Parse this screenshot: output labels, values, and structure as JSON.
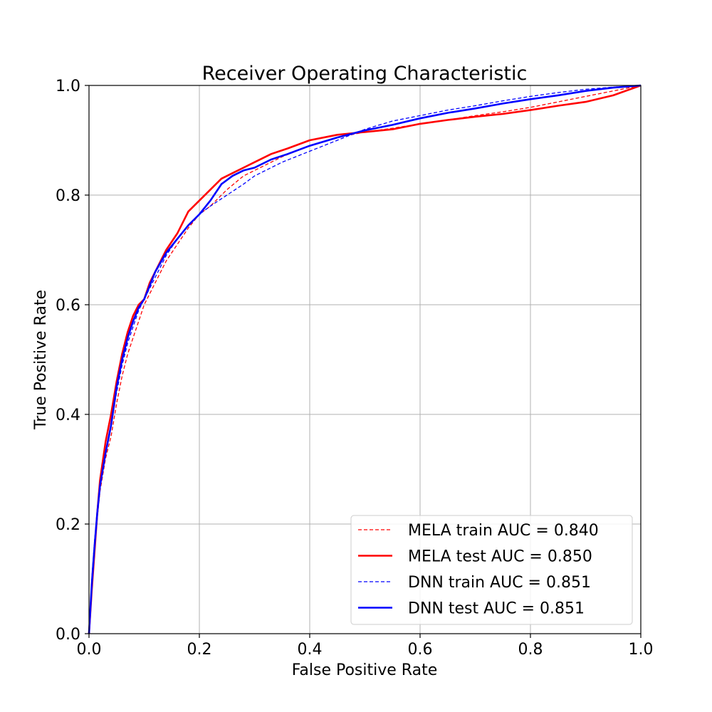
{
  "chart_data": {
    "type": "line",
    "title": "Receiver Operating Characteristic",
    "xlabel": "False Positive Rate",
    "ylabel": "True Positive Rate",
    "xlim": [
      0.0,
      1.0
    ],
    "ylim": [
      0.0,
      1.0
    ],
    "xticks": [
      "0.0",
      "0.2",
      "0.4",
      "0.6",
      "0.8",
      "1.0"
    ],
    "yticks": [
      "0.0",
      "0.2",
      "0.4",
      "0.6",
      "0.8",
      "1.0"
    ],
    "grid": true,
    "legend_position": "lower-right",
    "series": [
      {
        "name": "MELA train AUC = 0.840",
        "color": "#ff0000",
        "style": "dashed",
        "points": [
          [
            0,
            0
          ],
          [
            0.005,
            0.09
          ],
          [
            0.01,
            0.15
          ],
          [
            0.015,
            0.21
          ],
          [
            0.02,
            0.26
          ],
          [
            0.03,
            0.32
          ],
          [
            0.04,
            0.36
          ],
          [
            0.05,
            0.42
          ],
          [
            0.06,
            0.47
          ],
          [
            0.07,
            0.51
          ],
          [
            0.08,
            0.54
          ],
          [
            0.09,
            0.57
          ],
          [
            0.1,
            0.6
          ],
          [
            0.12,
            0.64
          ],
          [
            0.14,
            0.68
          ],
          [
            0.16,
            0.71
          ],
          [
            0.18,
            0.74
          ],
          [
            0.2,
            0.765
          ],
          [
            0.22,
            0.78
          ],
          [
            0.25,
            0.81
          ],
          [
            0.28,
            0.835
          ],
          [
            0.3,
            0.845
          ],
          [
            0.35,
            0.87
          ],
          [
            0.4,
            0.89
          ],
          [
            0.45,
            0.905
          ],
          [
            0.5,
            0.915
          ],
          [
            0.55,
            0.922
          ],
          [
            0.6,
            0.93
          ],
          [
            0.65,
            0.937
          ],
          [
            0.7,
            0.945
          ],
          [
            0.75,
            0.952
          ],
          [
            0.8,
            0.96
          ],
          [
            0.85,
            0.97
          ],
          [
            0.9,
            0.98
          ],
          [
            0.95,
            0.99
          ],
          [
            1.0,
            1.0
          ]
        ]
      },
      {
        "name": "MELA test AUC = 0.850",
        "color": "#ff0000",
        "style": "solid",
        "points": [
          [
            0,
            0
          ],
          [
            0.005,
            0.08
          ],
          [
            0.01,
            0.15
          ],
          [
            0.015,
            0.22
          ],
          [
            0.02,
            0.28
          ],
          [
            0.03,
            0.35
          ],
          [
            0.04,
            0.4
          ],
          [
            0.05,
            0.46
          ],
          [
            0.06,
            0.51
          ],
          [
            0.07,
            0.55
          ],
          [
            0.08,
            0.58
          ],
          [
            0.09,
            0.6
          ],
          [
            0.1,
            0.61
          ],
          [
            0.11,
            0.64
          ],
          [
            0.12,
            0.66
          ],
          [
            0.14,
            0.7
          ],
          [
            0.16,
            0.73
          ],
          [
            0.18,
            0.77
          ],
          [
            0.2,
            0.79
          ],
          [
            0.22,
            0.81
          ],
          [
            0.24,
            0.83
          ],
          [
            0.26,
            0.84
          ],
          [
            0.28,
            0.85
          ],
          [
            0.3,
            0.86
          ],
          [
            0.33,
            0.875
          ],
          [
            0.36,
            0.885
          ],
          [
            0.4,
            0.9
          ],
          [
            0.45,
            0.91
          ],
          [
            0.5,
            0.915
          ],
          [
            0.55,
            0.92
          ],
          [
            0.6,
            0.93
          ],
          [
            0.65,
            0.937
          ],
          [
            0.7,
            0.943
          ],
          [
            0.75,
            0.948
          ],
          [
            0.8,
            0.955
          ],
          [
            0.85,
            0.963
          ],
          [
            0.9,
            0.97
          ],
          [
            0.95,
            0.982
          ],
          [
            1.0,
            1.0
          ]
        ]
      },
      {
        "name": "DNN train AUC = 0.851",
        "color": "#0000ff",
        "style": "dashed",
        "points": [
          [
            0,
            0
          ],
          [
            0.005,
            0.1
          ],
          [
            0.01,
            0.17
          ],
          [
            0.015,
            0.22
          ],
          [
            0.02,
            0.27
          ],
          [
            0.03,
            0.33
          ],
          [
            0.04,
            0.38
          ],
          [
            0.05,
            0.44
          ],
          [
            0.06,
            0.49
          ],
          [
            0.07,
            0.53
          ],
          [
            0.08,
            0.56
          ],
          [
            0.09,
            0.59
          ],
          [
            0.1,
            0.61
          ],
          [
            0.12,
            0.65
          ],
          [
            0.14,
            0.69
          ],
          [
            0.16,
            0.72
          ],
          [
            0.18,
            0.745
          ],
          [
            0.2,
            0.765
          ],
          [
            0.22,
            0.78
          ],
          [
            0.25,
            0.8
          ],
          [
            0.28,
            0.82
          ],
          [
            0.3,
            0.835
          ],
          [
            0.35,
            0.86
          ],
          [
            0.4,
            0.88
          ],
          [
            0.45,
            0.9
          ],
          [
            0.5,
            0.92
          ],
          [
            0.55,
            0.935
          ],
          [
            0.6,
            0.945
          ],
          [
            0.65,
            0.955
          ],
          [
            0.7,
            0.963
          ],
          [
            0.75,
            0.972
          ],
          [
            0.8,
            0.98
          ],
          [
            0.85,
            0.987
          ],
          [
            0.9,
            0.993
          ],
          [
            0.95,
            0.997
          ],
          [
            1.0,
            1.0
          ]
        ]
      },
      {
        "name": "DNN test AUC = 0.851",
        "color": "#0000ff",
        "style": "solid",
        "points": [
          [
            0,
            0
          ],
          [
            0.005,
            0.09
          ],
          [
            0.01,
            0.16
          ],
          [
            0.015,
            0.22
          ],
          [
            0.02,
            0.27
          ],
          [
            0.03,
            0.33
          ],
          [
            0.04,
            0.38
          ],
          [
            0.05,
            0.45
          ],
          [
            0.06,
            0.5
          ],
          [
            0.07,
            0.54
          ],
          [
            0.08,
            0.57
          ],
          [
            0.09,
            0.595
          ],
          [
            0.1,
            0.61
          ],
          [
            0.11,
            0.635
          ],
          [
            0.12,
            0.66
          ],
          [
            0.14,
            0.695
          ],
          [
            0.16,
            0.72
          ],
          [
            0.18,
            0.745
          ],
          [
            0.2,
            0.765
          ],
          [
            0.22,
            0.79
          ],
          [
            0.24,
            0.82
          ],
          [
            0.26,
            0.835
          ],
          [
            0.28,
            0.845
          ],
          [
            0.3,
            0.85
          ],
          [
            0.33,
            0.865
          ],
          [
            0.36,
            0.875
          ],
          [
            0.4,
            0.89
          ],
          [
            0.45,
            0.905
          ],
          [
            0.5,
            0.918
          ],
          [
            0.55,
            0.928
          ],
          [
            0.6,
            0.94
          ],
          [
            0.65,
            0.95
          ],
          [
            0.7,
            0.958
          ],
          [
            0.75,
            0.967
          ],
          [
            0.8,
            0.975
          ],
          [
            0.85,
            0.982
          ],
          [
            0.9,
            0.99
          ],
          [
            0.95,
            0.996
          ],
          [
            1.0,
            1.0
          ]
        ]
      }
    ]
  }
}
